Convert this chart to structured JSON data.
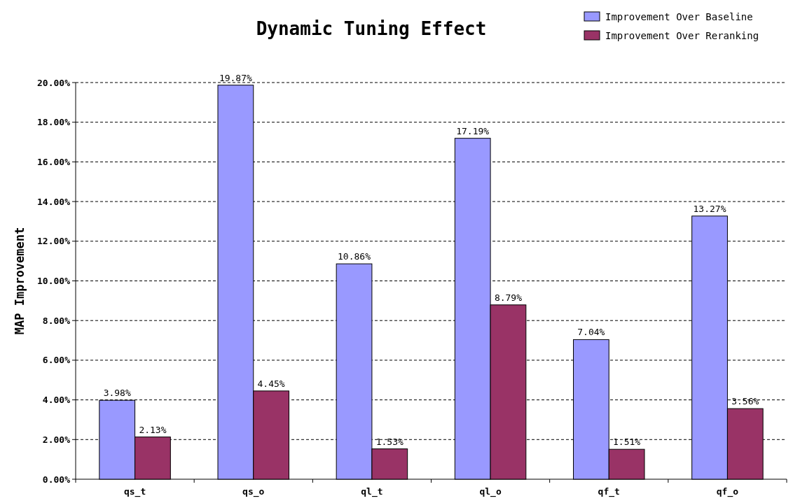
{
  "chart_data": {
    "type": "bar",
    "title": "Dynamic Tuning Effect",
    "ylabel": "MAP Improvement",
    "categories": [
      "qs_t",
      "qs_o",
      "ql_t",
      "ql_o",
      "qf_t",
      "qf_o"
    ],
    "series": [
      {
        "name": "Improvement Over Baseline",
        "color": "#9999ff",
        "values": [
          3.98,
          19.87,
          10.86,
          17.19,
          7.04,
          13.27
        ],
        "value_labels": [
          "3.98%",
          "19.87%",
          "10.86%",
          "17.19%",
          "7.04%",
          "13.27%"
        ]
      },
      {
        "name": "Improvement Over Reranking",
        "color": "#993366",
        "values": [
          2.13,
          4.45,
          1.53,
          8.79,
          1.51,
          3.56
        ],
        "value_labels": [
          "2.13%",
          "4.45%",
          "1.53%",
          "8.79%",
          "1.51%",
          "3.56%"
        ]
      }
    ],
    "ylim": [
      0,
      20
    ],
    "yticks": [
      {
        "value": 0,
        "label": "0.00%"
      },
      {
        "value": 2,
        "label": "2.00%"
      },
      {
        "value": 4,
        "label": "4.00%"
      },
      {
        "value": 6,
        "label": "6.00%"
      },
      {
        "value": 8,
        "label": "8.00%"
      },
      {
        "value": 10,
        "label": "10.00%"
      },
      {
        "value": 12,
        "label": "12.00%"
      },
      {
        "value": 14,
        "label": "14.00%"
      },
      {
        "value": 16,
        "label": "16.00%"
      },
      {
        "value": 18,
        "label": "18.00%"
      },
      {
        "value": 20,
        "label": "20.00%"
      }
    ],
    "grid": "y",
    "legend": "top right"
  }
}
